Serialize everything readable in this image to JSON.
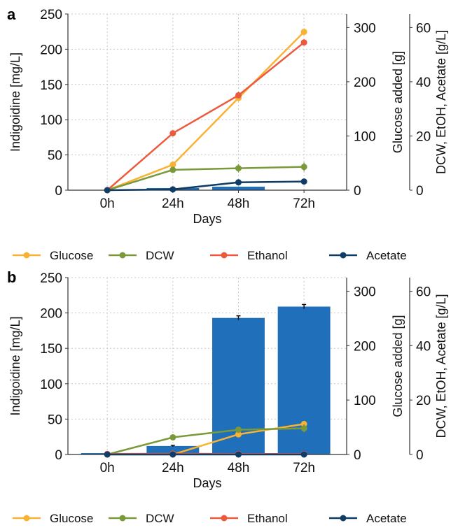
{
  "chart_data": [
    {
      "panel_label": "a",
      "type": "bar",
      "categories": [
        "0h",
        "24h",
        "48h",
        "72h"
      ],
      "xlabel": "Days",
      "ylabel": "Indigoidine [mg/L]",
      "ylim": [
        0,
        250
      ],
      "yticks": [
        "0",
        "50",
        "100",
        "150",
        "200",
        "250"
      ],
      "right_axis_1": {
        "label": "Glucose added [g]",
        "lim": [
          0,
          325
        ],
        "ticks": [
          "0",
          "100",
          "200",
          "300"
        ],
        "tick_values": [
          0,
          100,
          200,
          300
        ]
      },
      "right_axis_2": {
        "label": "DCW, EtOH, Acetate [g/L]",
        "lim": [
          0,
          65
        ],
        "ticks": [
          "0",
          "20",
          "40",
          "60"
        ],
        "tick_values": [
          0,
          20,
          40,
          60
        ]
      },
      "grid": true,
      "bars": {
        "axis": "left",
        "values": [
          0,
          3,
          5,
          0
        ]
      },
      "series": [
        {
          "name": "Glucose",
          "axis": "right_axis_1",
          "color": "#f9b233",
          "values": [
            0,
            47,
            170,
            292
          ],
          "err": [
            0,
            0,
            0,
            0
          ]
        },
        {
          "name": "DCW",
          "axis": "right_axis_2",
          "color": "#7a9a3a",
          "values": [
            0,
            7.5,
            8.1,
            8.6
          ],
          "err": [
            0,
            1.0,
            1.5,
            1.6
          ]
        },
        {
          "name": "Ethanol",
          "axis": "right_axis_2",
          "color": "#ec5a3e",
          "values": [
            0,
            21,
            35,
            54.5
          ],
          "err": [
            0,
            0,
            0,
            0
          ]
        },
        {
          "name": "Acetate",
          "axis": "right_axis_2",
          "color": "#0f3d66",
          "values": [
            0,
            0.3,
            2.9,
            3.2
          ],
          "err": [
            0,
            0,
            0,
            0
          ]
        }
      ]
    },
    {
      "panel_label": "b",
      "type": "bar",
      "categories": [
        "0h",
        "24h",
        "48h",
        "72h"
      ],
      "xlabel": "Days",
      "ylabel": "Indigoidine [mg/L]",
      "ylim": [
        0,
        250
      ],
      "yticks": [
        "0",
        "50",
        "100",
        "150",
        "200",
        "250"
      ],
      "right_axis_1": {
        "label": "Glucose added [g]",
        "lim": [
          0,
          325
        ],
        "ticks": [
          "0",
          "100",
          "200",
          "300"
        ],
        "tick_values": [
          0,
          100,
          200,
          300
        ]
      },
      "right_axis_2": {
        "label": "DCW, EtOH, Acetate [g/L]",
        "lim": [
          0,
          65
        ],
        "ticks": [
          "0",
          "20",
          "40",
          "60"
        ],
        "tick_values": [
          0,
          20,
          40,
          60
        ]
      },
      "grid": true,
      "bars": {
        "axis": "left",
        "values": [
          2,
          12,
          193,
          209
        ],
        "err": [
          0,
          1,
          3,
          3
        ]
      },
      "series": [
        {
          "name": "Glucose",
          "axis": "right_axis_1",
          "color": "#f9b233",
          "values": [
            0,
            0,
            37,
            56
          ],
          "err": [
            0,
            0,
            0,
            0
          ]
        },
        {
          "name": "DCW",
          "axis": "right_axis_2",
          "color": "#7a9a3a",
          "values": [
            0,
            6.3,
            9.1,
            9.6
          ],
          "err": [
            0,
            0.8,
            1.2,
            1.5
          ]
        },
        {
          "name": "Ethanol",
          "axis": "right_axis_2",
          "color": "#ec5a3e",
          "values": [
            0.2,
            0.3,
            0.2,
            0.2
          ],
          "err": [
            0,
            0,
            0,
            0
          ]
        },
        {
          "name": "Acetate",
          "axis": "right_axis_2",
          "color": "#0f3d66",
          "values": [
            0,
            0,
            0,
            0
          ],
          "err": [
            0,
            0,
            0,
            0
          ]
        }
      ]
    }
  ],
  "legend": {
    "items": [
      {
        "name": "Glucose",
        "color": "#f9b233"
      },
      {
        "name": "DCW",
        "color": "#7a9a3a"
      },
      {
        "name": "Ethanol",
        "color": "#ec5a3e"
      },
      {
        "name": "Acetate",
        "color": "#0f3d66"
      }
    ]
  },
  "colors": {
    "bar": "#1f6fba",
    "axis": "#333333",
    "grid": "#c8c8c8"
  }
}
